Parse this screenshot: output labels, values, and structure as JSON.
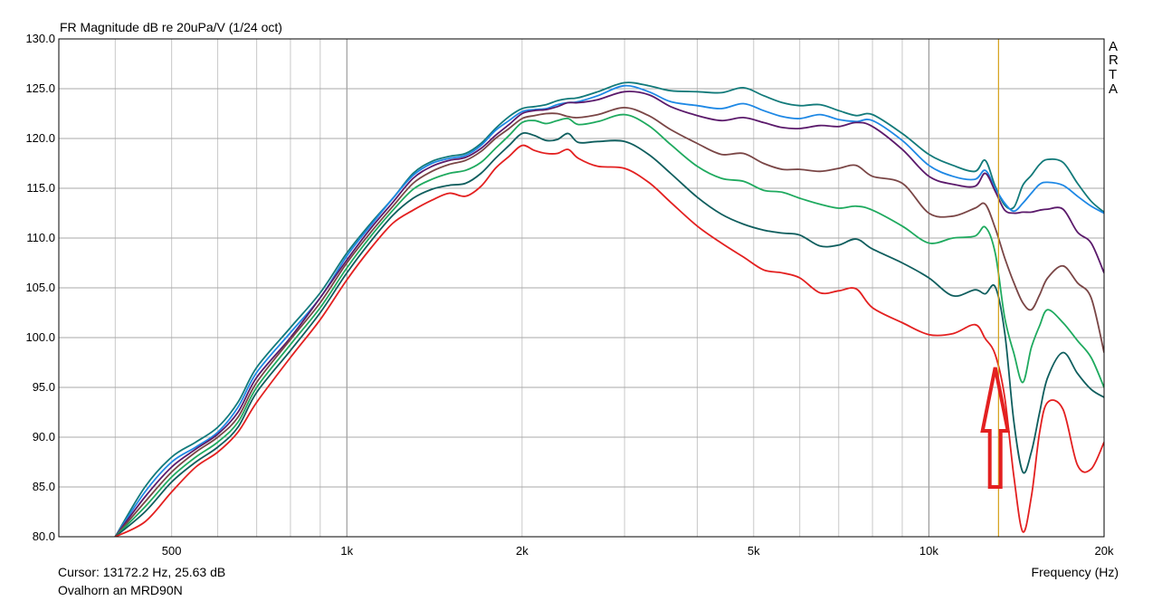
{
  "chart_data": {
    "type": "line",
    "title": "FR Magnitude dB re 20uPa/V (1/24 oct)",
    "xlabel": "Frequency (Hz)",
    "x_scale": "log",
    "xlim": [
      320,
      20000
    ],
    "ylim": [
      80,
      130
    ],
    "grid": true,
    "y_ticks": [
      "80.0",
      "85.0",
      "90.0",
      "95.0",
      "100.0",
      "105.0",
      "110.0",
      "115.0",
      "120.0",
      "125.0",
      "130.0"
    ],
    "x_tick_labels": [
      {
        "value": 500,
        "label": "500"
      },
      {
        "value": 1000,
        "label": "1k"
      },
      {
        "value": 2000,
        "label": "2k"
      },
      {
        "value": 5000,
        "label": "5k"
      },
      {
        "value": 10000,
        "label": "10k"
      },
      {
        "value": 20000,
        "label": "20k"
      }
    ],
    "watermark": [
      "A",
      "R",
      "T",
      "A"
    ],
    "cursor": {
      "frequency": 13172.2,
      "level": 25.63,
      "color": "#d4a017"
    },
    "cursor_text": "Cursor: 13172.2 Hz, 25.63 dB",
    "subtitle": "Ovalhorn an MRD90N",
    "annotation": {
      "type": "arrow",
      "direction": "up",
      "frequency": 13000,
      "tip_level": 97,
      "tail_level": 85,
      "color": "#e32020"
    },
    "series": [
      {
        "color": "#127a7a",
        "x": [
          400,
          450,
          500,
          550,
          600,
          650,
          700,
          800,
          900,
          1000,
          1100,
          1200,
          1300,
          1400,
          1500,
          1600,
          1700,
          1800,
          1900,
          2000,
          2100,
          2200,
          2300,
          2400,
          2500,
          2700,
          3000,
          3300,
          3600,
          4000,
          4400,
          4800,
          5200,
          5600,
          6000,
          6500,
          7000,
          7500,
          8000,
          9000,
          10000,
          11000,
          12000,
          12500,
          13000,
          13500,
          14000,
          14500,
          15000,
          15500,
          16000,
          17000,
          18000,
          19000,
          20000
        ],
        "y": [
          80,
          85,
          88,
          89.5,
          91,
          93.5,
          97,
          101,
          104.5,
          108.5,
          111.5,
          114,
          116.5,
          117.7,
          118.2,
          118.5,
          119.5,
          121,
          122.2,
          123,
          123.2,
          123.4,
          123.8,
          124,
          124.1,
          124.7,
          125.6,
          125.3,
          124.8,
          124.7,
          124.6,
          125.1,
          124.3,
          123.6,
          123.3,
          123.4,
          122.8,
          122.3,
          122.4,
          120.5,
          118.4,
          117.3,
          116.7,
          117.8,
          115.2,
          113.3,
          113.1,
          115.3,
          116.3,
          117.4,
          117.9,
          117.6,
          115.5,
          113.7,
          112.6
        ]
      },
      {
        "color": "#1e88e5",
        "x": [
          400,
          450,
          500,
          550,
          600,
          650,
          700,
          800,
          900,
          1000,
          1100,
          1200,
          1300,
          1400,
          1500,
          1600,
          1700,
          1800,
          1900,
          2000,
          2100,
          2200,
          2300,
          2400,
          2500,
          2700,
          3000,
          3300,
          3600,
          4000,
          4400,
          4800,
          5200,
          5600,
          6000,
          6500,
          7000,
          7500,
          8000,
          9000,
          10000,
          11000,
          12000,
          12500,
          13000,
          13500,
          14000,
          14500,
          15000,
          15500,
          16000,
          17000,
          18000,
          19000,
          20000
        ],
        "y": [
          80,
          84.5,
          87.5,
          89,
          90.5,
          93,
          96.5,
          100.5,
          104,
          108.2,
          111.3,
          114,
          116.3,
          117.5,
          118,
          118.3,
          119.3,
          120.8,
          121.8,
          122.7,
          122.9,
          123,
          123.4,
          123.6,
          123.7,
          124.3,
          125.3,
          124.7,
          123.7,
          123.3,
          123,
          123.5,
          122.8,
          122.2,
          122,
          122.4,
          121.9,
          121.7,
          121.8,
          119.8,
          117.3,
          116.2,
          115.9,
          116.8,
          115,
          113.5,
          112.7,
          113.5,
          114.5,
          115.4,
          115.6,
          115.3,
          114.2,
          113.2,
          112.5
        ]
      },
      {
        "color": "#5b1a6b",
        "x": [
          400,
          450,
          500,
          550,
          600,
          650,
          700,
          800,
          900,
          1000,
          1100,
          1200,
          1300,
          1400,
          1500,
          1600,
          1700,
          1800,
          1900,
          2000,
          2100,
          2200,
          2300,
          2400,
          2500,
          2700,
          3000,
          3300,
          3600,
          4000,
          4400,
          4800,
          5200,
          5600,
          6000,
          6500,
          7000,
          7500,
          8000,
          9000,
          10000,
          11000,
          12000,
          12500,
          13000,
          13500,
          14000,
          14500,
          15000,
          15500,
          16000,
          17000,
          18000,
          19000,
          20000
        ],
        "y": [
          80,
          84,
          87,
          88.8,
          90.3,
          92.5,
          96,
          100,
          104,
          107.8,
          111,
          113.6,
          116,
          117.2,
          117.8,
          118.1,
          119,
          120.3,
          121.4,
          122.5,
          122.8,
          122.9,
          123.2,
          123.6,
          123.6,
          123.9,
          124.7,
          124.4,
          123.2,
          122.3,
          121.8,
          122.1,
          121.6,
          121.1,
          121,
          121.3,
          121.2,
          121.6,
          121.2,
          118.9,
          116.2,
          115.4,
          115.2,
          116.5,
          114.7,
          112.8,
          112.5,
          112.6,
          112.6,
          112.8,
          112.9,
          112.9,
          110.6,
          109.5,
          106.5
        ]
      },
      {
        "color": "#7a4646",
        "x": [
          400,
          450,
          500,
          550,
          600,
          650,
          700,
          800,
          900,
          1000,
          1100,
          1200,
          1300,
          1400,
          1500,
          1600,
          1700,
          1800,
          1900,
          2000,
          2100,
          2200,
          2300,
          2400,
          2500,
          2700,
          3000,
          3300,
          3600,
          4000,
          4400,
          4800,
          5200,
          5600,
          6000,
          6500,
          7000,
          7500,
          8000,
          9000,
          10000,
          11000,
          12000,
          12500,
          13000,
          13500,
          14000,
          14500,
          15000,
          15500,
          16000,
          17000,
          18000,
          19000,
          20000
        ],
        "y": [
          80,
          83.5,
          86.5,
          88.5,
          90,
          92,
          95.5,
          99.8,
          103.5,
          107.5,
          110.6,
          113.2,
          115.5,
          116.7,
          117.4,
          117.8,
          118.7,
          120,
          121,
          122,
          122.3,
          122.5,
          122.5,
          122.2,
          122.1,
          122.4,
          123.1,
          122.3,
          120.9,
          119.5,
          118.4,
          118.5,
          117.5,
          116.9,
          116.9,
          116.7,
          117,
          117.3,
          116.2,
          115.5,
          112.5,
          112.2,
          113,
          113.4,
          111,
          108,
          105.5,
          103.5,
          102.8,
          104.3,
          106,
          107.2,
          105.5,
          104,
          98.5
        ]
      },
      {
        "color": "#1faa5f",
        "x": [
          400,
          450,
          500,
          550,
          600,
          650,
          700,
          800,
          900,
          1000,
          1100,
          1200,
          1300,
          1400,
          1500,
          1600,
          1700,
          1800,
          1900,
          2000,
          2100,
          2200,
          2300,
          2400,
          2500,
          2700,
          3000,
          3300,
          3600,
          4000,
          4400,
          4800,
          5200,
          5600,
          6000,
          6500,
          7000,
          7500,
          8000,
          9000,
          10000,
          11000,
          12000,
          12500,
          13000,
          13500,
          14000,
          14500,
          15000,
          15500,
          16000,
          17000,
          18000,
          19000,
          20000
        ],
        "y": [
          80,
          83,
          86,
          88,
          89.5,
          91.5,
          95,
          99.3,
          103,
          107,
          110.2,
          112.8,
          114.9,
          115.9,
          116.5,
          116.8,
          117.6,
          119,
          120.3,
          121.6,
          121.8,
          121.5,
          121.8,
          122,
          121.4,
          121.7,
          122.4,
          121.3,
          119.4,
          117.2,
          116,
          115.7,
          114.8,
          114.6,
          114,
          113.4,
          113,
          113.2,
          112.8,
          111.2,
          109.5,
          110,
          110.2,
          111.1,
          108.5,
          102,
          98.4,
          95.5,
          99,
          101.2,
          102.8,
          101.5,
          99.7,
          98,
          95
        ]
      },
      {
        "color": "#0f5e5e",
        "x": [
          400,
          450,
          500,
          550,
          600,
          650,
          700,
          800,
          900,
          1000,
          1100,
          1200,
          1300,
          1400,
          1500,
          1600,
          1700,
          1800,
          1900,
          2000,
          2100,
          2200,
          2300,
          2400,
          2500,
          2700,
          3000,
          3300,
          3600,
          4000,
          4400,
          4800,
          5200,
          5600,
          6000,
          6500,
          7000,
          7500,
          8000,
          9000,
          10000,
          11000,
          12000,
          12500,
          13000,
          13500,
          14000,
          14500,
          15000,
          15500,
          16000,
          17000,
          18000,
          19000,
          20000
        ],
        "y": [
          80,
          82.5,
          85.5,
          87.5,
          89,
          91,
          94.5,
          98.7,
          102.5,
          106.5,
          109.7,
          112.3,
          114,
          114.9,
          115.3,
          115.5,
          116.5,
          118,
          119.3,
          120.5,
          120.3,
          119.8,
          119.9,
          120.5,
          119.6,
          119.7,
          119.7,
          118.4,
          116.5,
          114.1,
          112.4,
          111.4,
          110.8,
          110.5,
          110.3,
          109.2,
          109.3,
          109.9,
          108.9,
          107.5,
          106,
          104.2,
          104.8,
          104.4,
          105.1,
          100.5,
          91.5,
          86.5,
          88.5,
          92.5,
          96,
          98.5,
          96.4,
          94.8,
          94
        ]
      },
      {
        "color": "#e32020",
        "x": [
          400,
          450,
          500,
          550,
          600,
          650,
          700,
          800,
          900,
          1000,
          1100,
          1200,
          1300,
          1400,
          1500,
          1600,
          1700,
          1800,
          1900,
          2000,
          2100,
          2200,
          2300,
          2400,
          2500,
          2700,
          3000,
          3300,
          3600,
          4000,
          4400,
          4800,
          5200,
          5600,
          6000,
          6500,
          7000,
          7500,
          8000,
          9000,
          10000,
          11000,
          12000,
          12500,
          13000,
          13500,
          14000,
          14500,
          15000,
          15500,
          16000,
          17000,
          18000,
          19000,
          20000
        ],
        "y": [
          80,
          81.5,
          84.5,
          87,
          88.5,
          90.5,
          93.5,
          98,
          101.8,
          105.8,
          109,
          111.5,
          112.8,
          113.8,
          114.5,
          114.2,
          115.2,
          117,
          118.2,
          119.3,
          118.8,
          118.5,
          118.5,
          118.9,
          118,
          117.2,
          117,
          115.6,
          113.6,
          111.2,
          109.5,
          108.1,
          106.8,
          106.5,
          106,
          104.5,
          104.7,
          104.9,
          103,
          101.5,
          100.3,
          100.4,
          101.3,
          99.9,
          98.3,
          94,
          86,
          80.5,
          84,
          90.5,
          93.5,
          92.8,
          87.2,
          86.8,
          89.5
        ]
      }
    ]
  }
}
